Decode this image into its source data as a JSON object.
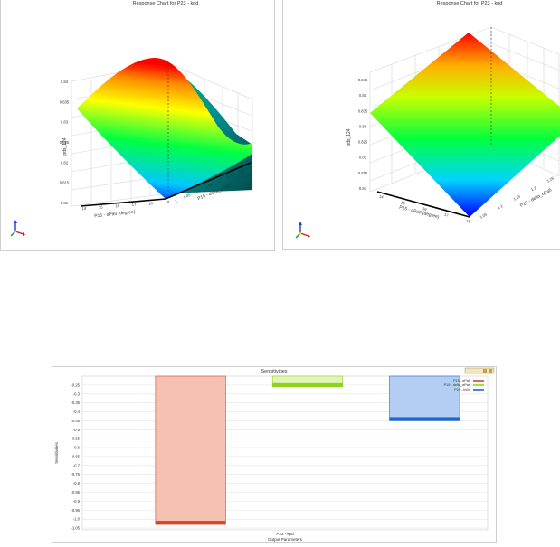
{
  "chart_data": [
    {
      "type": "surface",
      "title": "Response Chart for P23 - kpd",
      "xlabel": "P15 - αРаб (degree)",
      "ylabel": "P19 - delta_αРаб",
      "zlabel": "pds_124",
      "x_ticks": [
        "14",
        "15",
        "16",
        "17",
        "18",
        "19"
      ],
      "y_ticks": [
        "1",
        "1.05",
        "1.1",
        "1.15",
        "1.2",
        "1.25",
        "1.3"
      ],
      "z_ticks": [
        "0.81",
        "0.815",
        "0.82",
        "0.825",
        "0.83",
        "0.835",
        "0.84"
      ],
      "colormap": [
        "#0000ff",
        "#00ffff",
        "#00ff00",
        "#ffff00",
        "#ff0000"
      ]
    },
    {
      "type": "surface",
      "title": "Response Chart for P23 - kpd",
      "xlabel": "P15 - αРаб (degree)",
      "ylabel": "P19 - delta_αРаб",
      "zlabel": "pds_124",
      "x_ticks": [
        "14",
        "15",
        "16",
        "17",
        "18"
      ],
      "y_ticks": [
        "1.05",
        "1.1",
        "1.15",
        "1.2",
        "1.25"
      ],
      "z_ticks": [
        "0.81",
        "0.815",
        "0.82",
        "0.825",
        "0.83",
        "0.835",
        "0.84",
        "0.845"
      ],
      "colormap": [
        "#0000ff",
        "#00ffff",
        "#00ff00",
        "#ffff00",
        "#ff0000"
      ]
    },
    {
      "type": "bar",
      "title": "Sensitivities",
      "xlabel": "Output Parameters",
      "ylabel": "Sensitivities",
      "categories": [
        "P23 - kpd"
      ],
      "ylim": [
        -1.06,
        -0.2
      ],
      "y_ticks": [
        -0.25,
        -0.3,
        -0.35,
        -0.4,
        -0.45,
        -0.5,
        -0.55,
        -0.6,
        -0.65,
        -0.7,
        -0.75,
        -0.8,
        -0.85,
        -0.9,
        -0.95,
        -1.0,
        -1.05
      ],
      "grid": true,
      "legend_position": "top-right",
      "series": [
        {
          "name": "P15 - αРаб",
          "values": [
            -1.03
          ],
          "fill": "#f5c1b3",
          "edge": "#d9461f"
        },
        {
          "name": "P19 - delta_αРаб",
          "values": [
            -0.26
          ],
          "fill": "#e0f5b8",
          "edge": "#8ed21c"
        },
        {
          "name": "P20 - kWd",
          "values": [
            -0.45
          ],
          "fill": "#b3cef2",
          "edge": "#1f66d1"
        }
      ]
    }
  ]
}
